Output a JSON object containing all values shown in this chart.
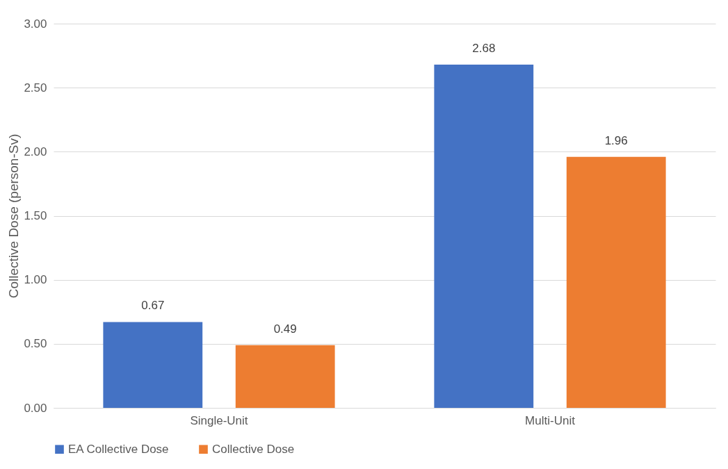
{
  "chart_data": {
    "type": "bar",
    "ylabel": "Collective Dose (person-Sv)",
    "categories": [
      "Single-Unit",
      "Multi-Unit"
    ],
    "series": [
      {
        "name": "EA Collective Dose",
        "color": "#4472c4",
        "values": [
          0.67,
          2.68
        ]
      },
      {
        "name": "Collective Dose",
        "color": "#ed7d31",
        "values": [
          0.49,
          1.96
        ]
      }
    ],
    "ylim": [
      0,
      3
    ],
    "yticks": [
      {
        "value": 0,
        "label": "0.00"
      },
      {
        "value": 0.5,
        "label": "0.50"
      },
      {
        "value": 1,
        "label": "1.00"
      },
      {
        "value": 1.5,
        "label": "1.50"
      },
      {
        "value": 2,
        "label": "2.00"
      },
      {
        "value": 2.5,
        "label": "2.50"
      },
      {
        "value": 3,
        "label": "3.00"
      }
    ],
    "grid": "y",
    "legend": "bottom",
    "data_labels": true
  }
}
